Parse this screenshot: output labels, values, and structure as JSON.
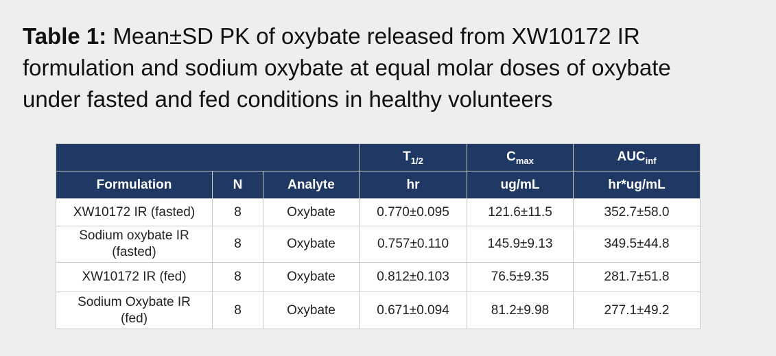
{
  "title": {
    "label": "Table  1:",
    "lines": [
      "Mean±SD PK of oxybate released from XW10172 IR",
      "formulation and sodium oxybate at equal molar doses of oxybate",
      "under fasted and fed conditions in healthy volunteers"
    ]
  },
  "table": {
    "header_top": [
      {
        "main": "T",
        "sub": "1/2"
      },
      {
        "main": "C",
        "sub": "max"
      },
      {
        "main": "AUC",
        "sub": "inf"
      }
    ],
    "header": [
      "Formulation",
      "N",
      "Analyte",
      "hr",
      "ug/mL",
      "hr*ug/mL"
    ],
    "rows": [
      [
        [
          "XW10172 IR (fasted)"
        ],
        8,
        "Oxybate",
        "0.770±0.095",
        "121.6±11.5",
        "352.7±58.0"
      ],
      [
        [
          "Sodium oxybate IR",
          "(fasted)"
        ],
        8,
        "Oxybate",
        "0.757±0.110",
        "145.9±9.13",
        "349.5±44.8"
      ],
      [
        [
          "XW10172 IR (fed)"
        ],
        8,
        "Oxybate",
        "0.812±0.103",
        "76.5±9.35",
        "281.7±51.8"
      ],
      [
        [
          "Sodium Oxybate IR",
          "(fed)"
        ],
        8,
        "Oxybate",
        "0.671±0.094",
        "81.2±9.98",
        "277.1±49.2"
      ]
    ]
  }
}
